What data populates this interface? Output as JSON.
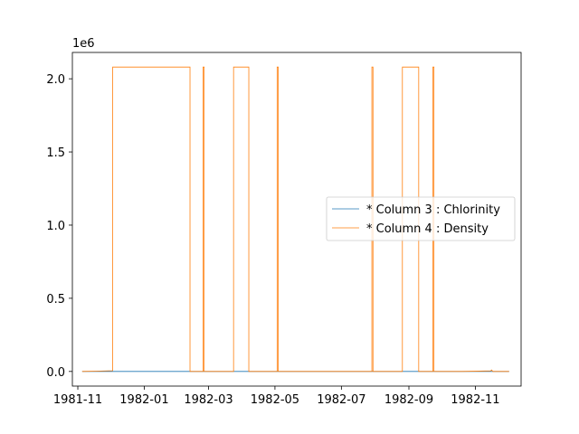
{
  "chart_data": {
    "type": "line",
    "title": "",
    "xlabel": "",
    "ylabel": "",
    "offset_label": "1e6",
    "x_axis": {
      "type": "date",
      "range": [
        "1981-10-27",
        "1982-12-13"
      ],
      "ticks": [
        "1981-11",
        "1982-01",
        "1982-03",
        "1982-05",
        "1982-07",
        "1982-09",
        "1982-11"
      ]
    },
    "y_axis": {
      "range": [
        -0.1,
        2.18
      ],
      "ticks": [
        0.0,
        0.5,
        1.0,
        1.5,
        2.0
      ],
      "tick_labels": [
        "0.0",
        "0.5",
        "1.0",
        "1.5",
        "2.0"
      ]
    },
    "grid": false,
    "legend": {
      "position": "right",
      "entries": [
        "* Column 3 : Chlorinity",
        "* Column 4 : Density"
      ]
    },
    "series": [
      {
        "name": "* Column 3 : Chlorinity",
        "color": "#1f77b4",
        "points": [
          [
            "1981-11-05",
            0.0
          ],
          [
            "1982-12-02",
            0.0
          ]
        ]
      },
      {
        "name": "* Column 4 : Density",
        "color": "#ff7f0e",
        "points": [
          [
            "1981-11-05",
            0.0
          ],
          [
            "1981-11-18",
            0.002
          ],
          [
            "1981-12-03",
            0.005
          ],
          [
            "1981-12-03",
            2.08
          ],
          [
            "1982-02-12",
            2.08
          ],
          [
            "1982-02-12",
            0.0
          ],
          [
            "1982-02-24",
            0.0
          ],
          [
            "1982-02-24",
            2.08
          ],
          [
            "1982-02-25",
            2.08
          ],
          [
            "1982-02-25",
            0.0
          ],
          [
            "1982-03-24",
            0.0
          ],
          [
            "1982-03-24",
            2.08
          ],
          [
            "1982-04-07",
            2.08
          ],
          [
            "1982-04-07",
            0.0
          ],
          [
            "1982-05-03",
            0.0
          ],
          [
            "1982-05-03",
            2.08
          ],
          [
            "1982-05-04",
            2.08
          ],
          [
            "1982-05-04",
            0.0
          ],
          [
            "1982-07-29",
            0.0
          ],
          [
            "1982-07-29",
            2.08
          ],
          [
            "1982-07-30",
            2.08
          ],
          [
            "1982-07-30",
            0.0
          ],
          [
            "1982-08-26",
            0.0
          ],
          [
            "1982-08-26",
            2.08
          ],
          [
            "1982-09-10",
            2.08
          ],
          [
            "1982-09-10",
            0.0
          ],
          [
            "1982-09-23",
            0.0
          ],
          [
            "1982-09-23",
            2.08
          ],
          [
            "1982-09-24",
            2.08
          ],
          [
            "1982-09-24",
            0.0
          ],
          [
            "1982-10-20",
            0.0
          ],
          [
            "1982-11-15",
            0.004
          ],
          [
            "1982-11-16",
            0.01
          ],
          [
            "1982-11-17",
            0.0
          ],
          [
            "1982-12-02",
            0.0
          ]
        ]
      }
    ]
  }
}
